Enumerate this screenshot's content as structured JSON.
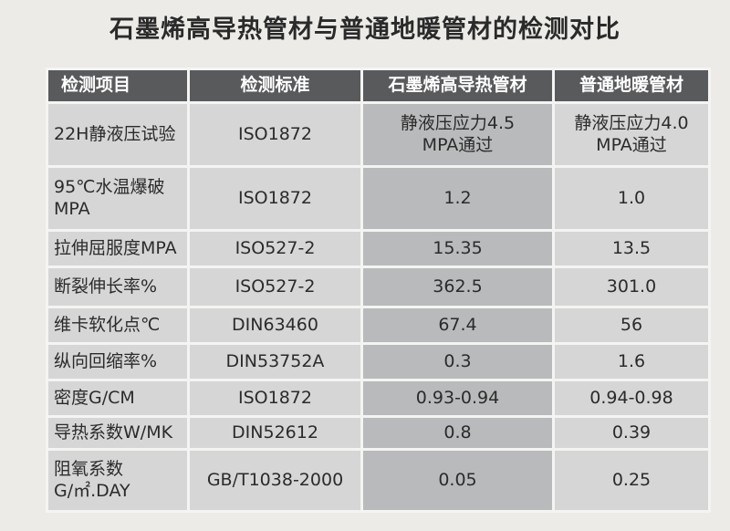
{
  "title": "石墨烯高导热管材与普通地暖管材的检测对比",
  "table": {
    "headers": [
      "检测项目",
      "检测标准",
      "石墨烯高导热管材",
      "普通地暖管材"
    ],
    "rows": [
      [
        "22H静液压试验",
        "ISO1872",
        "静液压应力4.5\nMPA通过",
        "静液压应力4.0\nMPA通过"
      ],
      [
        "95℃水温爆破\nMPA",
        "ISO1872",
        "1.2",
        "1.0"
      ],
      [
        "拉伸屈服度MPA",
        "ISO527-2",
        "15.35",
        "13.5"
      ],
      [
        "断裂伸长率%",
        "ISO527-2",
        "362.5",
        "301.0"
      ],
      [
        "维卡软化点℃",
        "DIN63460",
        "67.4",
        "56"
      ],
      [
        "纵向回缩率%",
        "DIN53752A",
        "0.3",
        "1.6"
      ],
      [
        "密度G/CM",
        "ISO1872",
        "0.93-0.94",
        "0.94-0.98"
      ],
      [
        "导热系数W/MK",
        "DIN52612",
        "0.8",
        "0.39"
      ],
      [
        "阻氧系数\nG/㎡.DAY",
        "GB/T1038-2000",
        "0.05",
        "0.25"
      ]
    ]
  }
}
